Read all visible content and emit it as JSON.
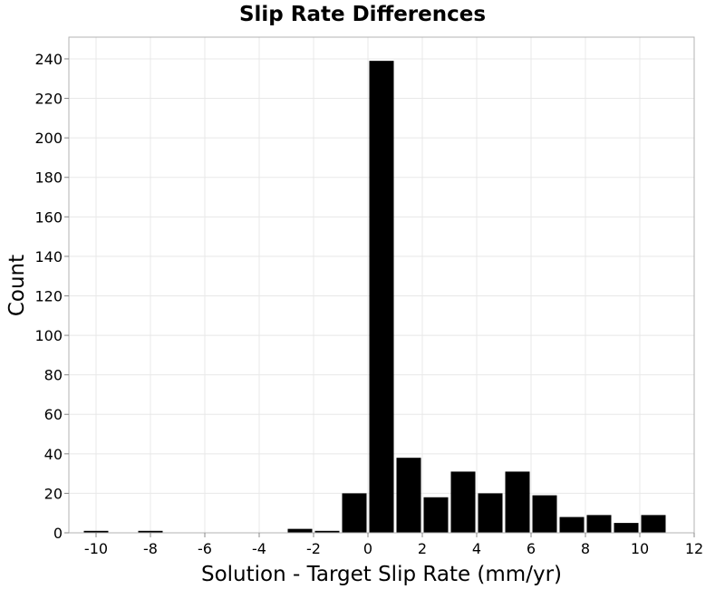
{
  "chart_data": {
    "type": "bar",
    "title": "Slip Rate Differences",
    "xlabel": "Solution - Target Slip Rate (mm/yr)",
    "ylabel": "Count",
    "xlim": [
      -11,
      12
    ],
    "ylim": [
      0,
      251
    ],
    "xticks": [
      -10,
      -8,
      -6,
      -4,
      -2,
      0,
      2,
      4,
      6,
      8,
      10,
      12
    ],
    "yticks": [
      0,
      20,
      40,
      60,
      80,
      100,
      120,
      140,
      160,
      180,
      200,
      220,
      240
    ],
    "grid": true,
    "bar_color": "#000000",
    "bin_width": 1,
    "bins": [
      {
        "x": -10,
        "count": 1
      },
      {
        "x": -8,
        "count": 1
      },
      {
        "x": -2.5,
        "count": 2
      },
      {
        "x": -1.5,
        "count": 1
      },
      {
        "x": -0.5,
        "count": 20
      },
      {
        "x": 0.5,
        "count": 239
      },
      {
        "x": 1.5,
        "count": 38
      },
      {
        "x": 2.5,
        "count": 18
      },
      {
        "x": 3.5,
        "count": 31
      },
      {
        "x": 4.5,
        "count": 20
      },
      {
        "x": 5.5,
        "count": 31
      },
      {
        "x": 6.5,
        "count": 19
      },
      {
        "x": 7.5,
        "count": 8
      },
      {
        "x": 8.5,
        "count": 9
      },
      {
        "x": 9.5,
        "count": 5
      },
      {
        "x": 10.5,
        "count": 9
      }
    ]
  }
}
